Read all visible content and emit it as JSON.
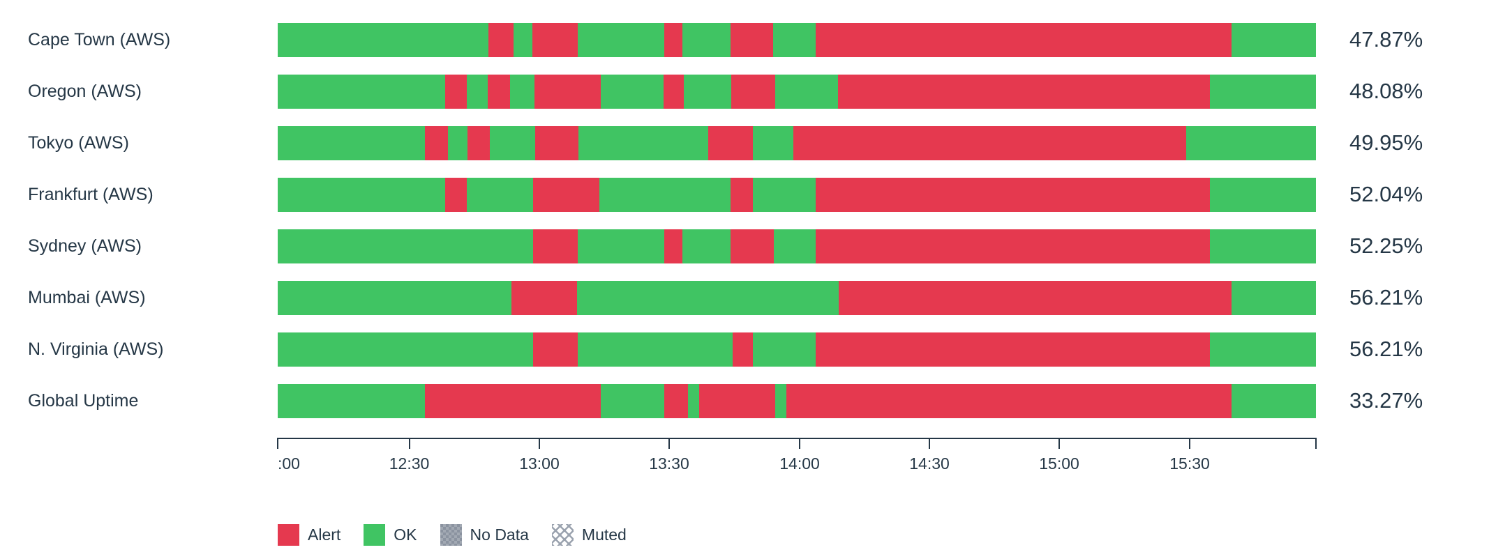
{
  "widget": {
    "type": "check-status-uptime-timeline"
  },
  "colors": {
    "text": "#253746",
    "ok": "#40c463",
    "alert": "#e5394f",
    "no_data": "#8b93a0",
    "muted_hatch": "#9aa2ae"
  },
  "chart_data": {
    "type": "bar",
    "subtype": "horizontal-status-timeline",
    "time_axis": {
      "start": "12:00",
      "end": "16:00",
      "tick_interval_minutes": 30,
      "ticks": [
        {
          "pos": 0,
          "label": ":00"
        },
        {
          "pos": 12.67,
          "label": "12:30"
        },
        {
          "pos": 25.2,
          "label": "13:00"
        },
        {
          "pos": 37.7,
          "label": "13:30"
        },
        {
          "pos": 50.27,
          "label": "14:00"
        },
        {
          "pos": 62.77,
          "label": "14:30"
        },
        {
          "pos": 75.27,
          "label": "15:00"
        },
        {
          "pos": 87.84,
          "label": "15:30"
        },
        {
          "pos": 100,
          "label": ""
        }
      ]
    },
    "rows": [
      {
        "label": "Cape Town (AWS)",
        "uptime": "47.87%",
        "segments": [
          [
            "ok",
            20.3
          ],
          [
            "alert",
            2.4
          ],
          [
            "ok",
            1.8
          ],
          [
            "alert",
            4.4
          ],
          [
            "ok",
            8.3
          ],
          [
            "alert",
            1.8
          ],
          [
            "ok",
            4.6
          ],
          [
            "alert",
            4.1
          ],
          [
            "ok",
            4.1
          ],
          [
            "alert",
            40.1
          ],
          [
            "ok",
            8.1
          ]
        ]
      },
      {
        "label": "Oregon (AWS)",
        "uptime": "48.08%",
        "segments": [
          [
            "ok",
            16.1
          ],
          [
            "alert",
            2.1
          ],
          [
            "ok",
            2.0
          ],
          [
            "alert",
            2.2
          ],
          [
            "ok",
            2.3
          ],
          [
            "alert",
            6.4
          ],
          [
            "ok",
            6.1
          ],
          [
            "alert",
            1.9
          ],
          [
            "ok",
            4.6
          ],
          [
            "alert",
            4.2
          ],
          [
            "ok",
            6.1
          ],
          [
            "alert",
            35.8
          ],
          [
            "ok",
            10.2
          ]
        ]
      },
      {
        "label": "Tokyo (AWS)",
        "uptime": "49.95%",
        "segments": [
          [
            "ok",
            14.2
          ],
          [
            "alert",
            2.2
          ],
          [
            "ok",
            1.9
          ],
          [
            "alert",
            2.1
          ],
          [
            "ok",
            4.4
          ],
          [
            "alert",
            4.2
          ],
          [
            "ok",
            12.5
          ],
          [
            "alert",
            4.3
          ],
          [
            "ok",
            3.9
          ],
          [
            "alert",
            37.8
          ],
          [
            "ok",
            12.5
          ]
        ]
      },
      {
        "label": "Frankfurt (AWS)",
        "uptime": "52.04%",
        "segments": [
          [
            "ok",
            16.1
          ],
          [
            "alert",
            2.1
          ],
          [
            "ok",
            6.4
          ],
          [
            "alert",
            6.4
          ],
          [
            "ok",
            12.6
          ],
          [
            "alert",
            2.2
          ],
          [
            "ok",
            6.0
          ],
          [
            "alert",
            38.0
          ],
          [
            "ok",
            10.2
          ]
        ]
      },
      {
        "label": "Sydney (AWS)",
        "uptime": "52.25%",
        "segments": [
          [
            "ok",
            24.6
          ],
          [
            "alert",
            4.3
          ],
          [
            "ok",
            8.3
          ],
          [
            "alert",
            1.8
          ],
          [
            "ok",
            4.6
          ],
          [
            "alert",
            4.2
          ],
          [
            "ok",
            4.0
          ],
          [
            "alert",
            38.0
          ],
          [
            "ok",
            10.2
          ]
        ]
      },
      {
        "label": "Mumbai (AWS)",
        "uptime": "56.21%",
        "segments": [
          [
            "ok",
            22.5
          ],
          [
            "alert",
            6.3
          ],
          [
            "ok",
            25.2
          ],
          [
            "alert",
            37.9
          ],
          [
            "ok",
            8.1
          ]
        ]
      },
      {
        "label": "N. Virginia (AWS)",
        "uptime": "56.21%",
        "segments": [
          [
            "ok",
            24.6
          ],
          [
            "alert",
            4.3
          ],
          [
            "ok",
            14.9
          ],
          [
            "alert",
            2.0
          ],
          [
            "ok",
            6.0
          ],
          [
            "alert",
            38.0
          ],
          [
            "ok",
            10.2
          ]
        ]
      },
      {
        "label": "Global Uptime",
        "uptime": "33.27%",
        "segments": [
          [
            "ok",
            14.2
          ],
          [
            "alert",
            16.9
          ],
          [
            "ok",
            6.1
          ],
          [
            "alert",
            2.3
          ],
          [
            "ok",
            1.1
          ],
          [
            "alert",
            7.3
          ],
          [
            "ok",
            1.1
          ],
          [
            "alert",
            42.9
          ],
          [
            "ok",
            8.1
          ]
        ]
      }
    ],
    "legend": [
      {
        "label": "Alert",
        "kind": "alert"
      },
      {
        "label": "OK",
        "kind": "ok"
      },
      {
        "label": "No Data",
        "kind": "nodata"
      },
      {
        "label": "Muted",
        "kind": "muted"
      }
    ]
  }
}
